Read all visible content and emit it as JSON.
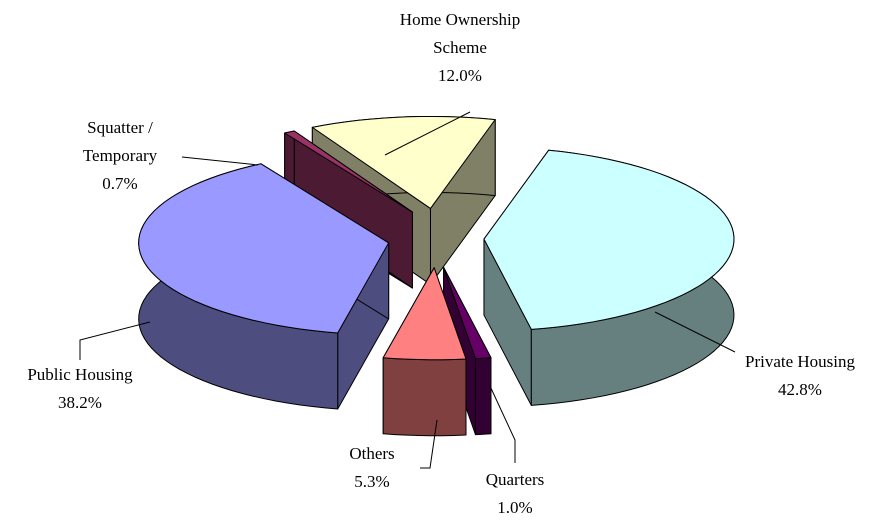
{
  "chart_data": {
    "type": "pie",
    "categories": [
      "Private Housing",
      "Quarters",
      "Others",
      "Public Housing",
      "Squatter / Temporary",
      "Home Ownership Scheme"
    ],
    "values": [
      42.8,
      1.0,
      5.3,
      38.2,
      0.7,
      12.0
    ],
    "value_labels": [
      "42.8%",
      "1.0%",
      "5.3%",
      "38.2%",
      "0.7%",
      "12.0%"
    ],
    "colors": [
      "#ccffff",
      "#660066",
      "#ff8080",
      "#9999ff",
      "#993366",
      "#ffffcc"
    ]
  }
}
